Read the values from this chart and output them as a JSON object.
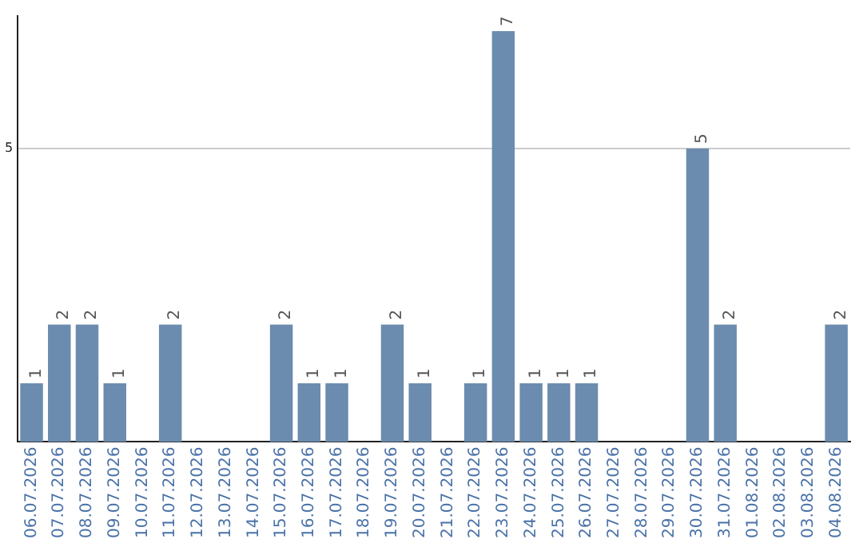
{
  "chart_data": {
    "type": "bar",
    "categories": [
      "06.07.2026",
      "07.07.2026",
      "08.07.2026",
      "09.07.2026",
      "10.07.2026",
      "11.07.2026",
      "12.07.2026",
      "13.07.2026",
      "14.07.2026",
      "15.07.2026",
      "16.07.2026",
      "17.07.2026",
      "18.07.2026",
      "19.07.2026",
      "20.07.2026",
      "21.07.2026",
      "22.07.2026",
      "23.07.2026",
      "24.07.2026",
      "25.07.2026",
      "26.07.2026",
      "27.07.2026",
      "28.07.2026",
      "29.07.2026",
      "30.07.2026",
      "31.07.2026",
      "01.08.2026",
      "02.08.2026",
      "03.08.2026",
      "04.08.2026"
    ],
    "values": [
      1,
      2,
      2,
      1,
      0,
      2,
      0,
      0,
      0,
      2,
      1,
      1,
      0,
      2,
      1,
      0,
      1,
      7,
      1,
      1,
      1,
      0,
      0,
      0,
      5,
      2,
      0,
      0,
      0,
      2
    ],
    "value_labels": [
      "1",
      "2",
      "2",
      "1",
      null,
      "2",
      null,
      null,
      null,
      "2",
      "1",
      "1",
      null,
      "2",
      "1",
      null,
      "1",
      "7",
      "1",
      "1",
      "1",
      null,
      null,
      null,
      "5",
      "2",
      null,
      null,
      null,
      "2"
    ],
    "color": "#6b8cae",
    "ylim": [
      0,
      7.26
    ],
    "yticks": [
      5
    ],
    "grid": "y",
    "legend": false
  }
}
